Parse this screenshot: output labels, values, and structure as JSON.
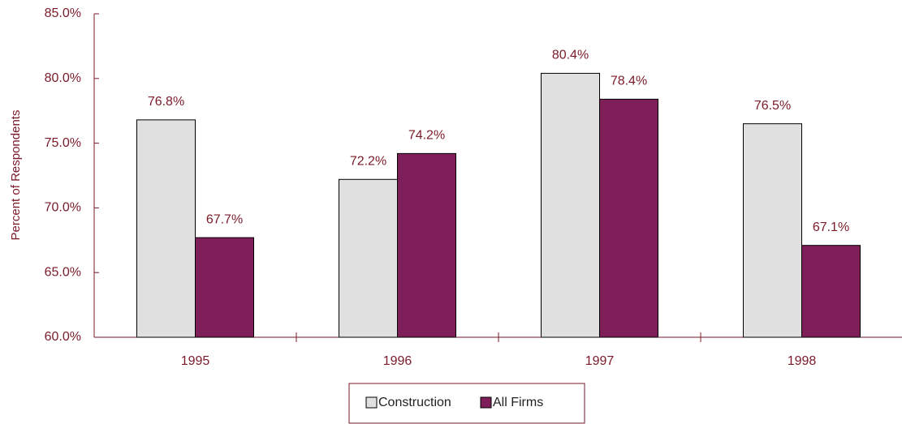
{
  "chart_data": {
    "type": "bar",
    "y_label": "Percent of Respondents",
    "categories": [
      "1995",
      "1996",
      "1997",
      "1998"
    ],
    "series": [
      {
        "name": "Construction",
        "color": "#e0e0e0",
        "values": [
          76.8,
          72.2,
          80.4,
          76.5
        ],
        "value_labels": [
          "76.8%",
          "72.2%",
          "80.4%",
          "76.5%"
        ]
      },
      {
        "name": "All Firms",
        "color": "#7f1f5a",
        "values": [
          67.7,
          74.2,
          78.4,
          67.1
        ],
        "value_labels": [
          "67.7%",
          "74.2%",
          "78.4%",
          "67.1%"
        ]
      }
    ],
    "ylim": [
      60,
      85
    ],
    "yticks": [
      {
        "value": 60,
        "label": "60.0%"
      },
      {
        "value": 65,
        "label": "65.0%"
      },
      {
        "value": 70,
        "label": "70.0%"
      },
      {
        "value": 75,
        "label": "75.0%"
      },
      {
        "value": 80,
        "label": "80.0%"
      },
      {
        "value": 85,
        "label": "85.0%"
      }
    ],
    "legend": "bottom"
  }
}
